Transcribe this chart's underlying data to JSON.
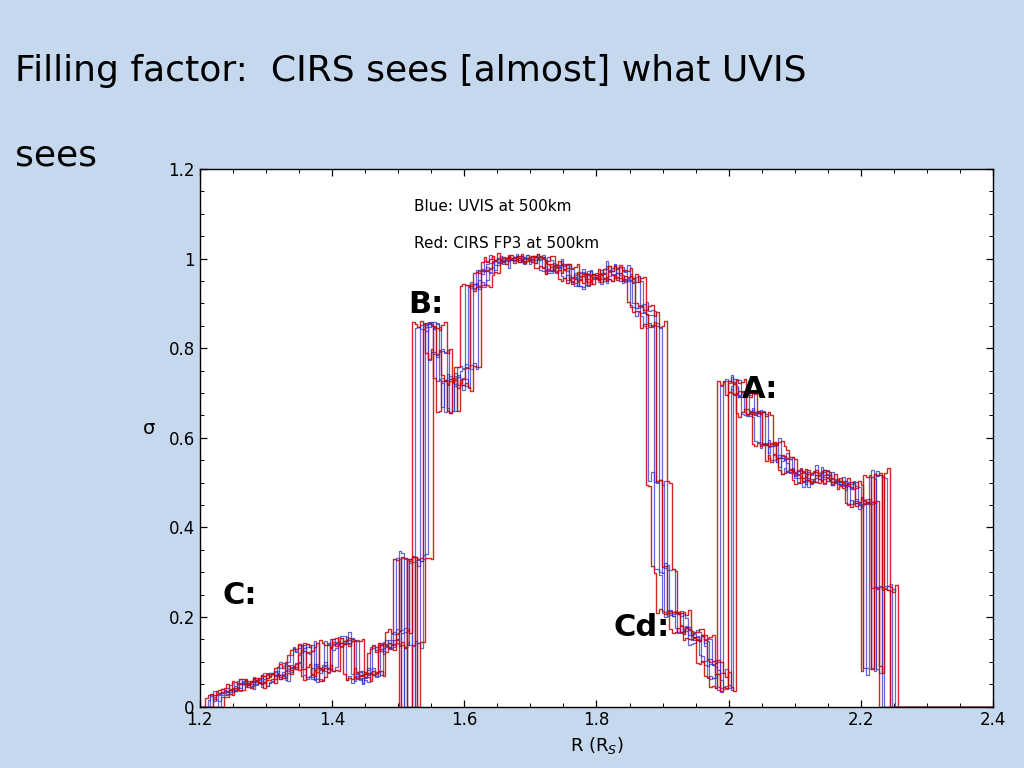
{
  "title_line1": "Filling factor:  CIRS sees [almost] what UVIS",
  "title_line2": "sees",
  "xlabel": "R (R$_S$)",
  "ylabel": "σ",
  "xlim": [
    1.2,
    2.4
  ],
  "ylim": [
    0,
    1.2
  ],
  "xticks": [
    1.2,
    1.4,
    1.6,
    1.8,
    2.0,
    2.2,
    2.4
  ],
  "yticks": [
    0,
    0.2,
    0.4,
    0.6,
    0.8,
    1.0,
    1.2
  ],
  "legend_text_blue": "Blue: UVIS at 500km",
  "legend_text_red": "Red: CIRS FP3 at 500km",
  "annotation_B": "B:",
  "annotation_A": "A:",
  "annotation_C": "C:",
  "annotation_Cd": "Cd:",
  "bg_color": "#c5d8ee",
  "plot_bg": "#ffffff",
  "blue_color": "#3333cc",
  "red_color": "#cc0000",
  "dark_color": "#111111"
}
